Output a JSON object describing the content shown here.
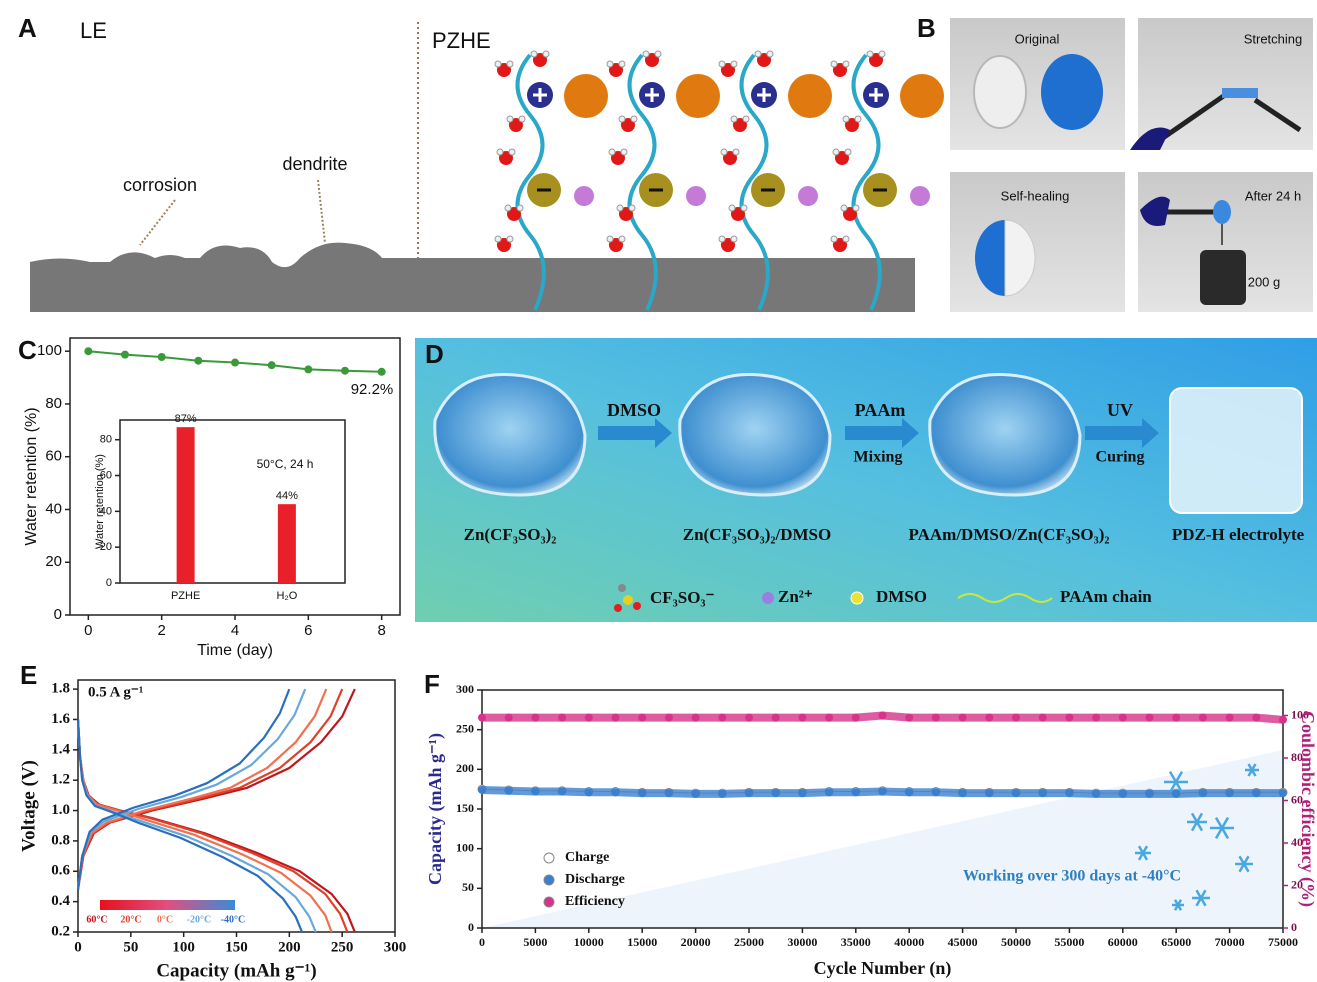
{
  "panel_labels": [
    "A",
    "B",
    "C",
    "D",
    "E",
    "F"
  ],
  "panel_a": {
    "le_label": "LE",
    "pzhe_label": "PZHE",
    "annotations": [
      "corrosion",
      "dendrite"
    ]
  },
  "panel_b": {
    "photos": [
      {
        "label": "Original"
      },
      {
        "label": "Stretching"
      },
      {
        "label": "Self-healing"
      },
      {
        "label": "After 24 h",
        "weight": "200 g"
      }
    ]
  },
  "panel_d": {
    "steps": [
      {
        "label": "DMSO"
      },
      {
        "label": "PAAm",
        "sublabel": "Mixing"
      },
      {
        "label": "UV",
        "sublabel": "Curing"
      }
    ],
    "materials": [
      "Zn(CF₃SO₃)₂",
      "Zn(CF₃SO₃)₂/DMSO",
      "PAAm/DMSO/Zn(CF₃SO₃)₂",
      "PDZ-H electrolyte"
    ],
    "legend": [
      "CF₃SO₃⁻",
      "Zn²⁺",
      "DMSO",
      "PAAm chain"
    ]
  },
  "chart_data": [
    {
      "type": "line",
      "x": [
        0,
        1,
        2,
        3,
        4,
        5,
        6,
        7,
        8
      ],
      "values": [
        100,
        98.7,
        97.8,
        96.4,
        95.7,
        94.7,
        93.1,
        92.6,
        92.2
      ],
      "color": "#3a9a3a",
      "xlim": [
        -0.5,
        8.5
      ],
      "ylim": [
        0,
        105
      ],
      "xticks": [
        0,
        2,
        4,
        6,
        8
      ],
      "yticks": [
        0,
        20,
        40,
        60,
        80,
        100
      ],
      "x_label": "Time (day)",
      "y_label": "Water retention (%)",
      "annotation": "92.2%"
    },
    {
      "type": "bar",
      "categories": [
        "PZHE",
        "H₂O"
      ],
      "values": [
        87,
        44
      ],
      "value_labels": [
        "87%",
        "44%"
      ],
      "color": "#e8202a",
      "ylim": [
        0,
        91
      ],
      "yticks": [
        0,
        20,
        40,
        60,
        80
      ],
      "y_label": "Water retention (%)",
      "annotation": "50°C, 24 h"
    },
    {
      "type": "line",
      "xlim": [
        0,
        300
      ],
      "ylim": [
        0.2,
        1.86
      ],
      "xticks": [
        0,
        50,
        100,
        150,
        200,
        250,
        300
      ],
      "yticks": [
        0.2,
        0.4,
        0.6,
        0.8,
        {
          "value": 1,
          "label": "1.0"
        },
        1.2,
        1.4,
        1.6,
        1.8
      ],
      "x_label": "Capacity (mAh g⁻¹)",
      "y_label": "Voltage (V)",
      "annotation": "0.5 A g⁻¹",
      "series": [
        {
          "name": "60°C",
          "color": "#c0161b",
          "discharge": {
            "x": [
              0,
              2,
              5,
              10,
              20,
              40,
              70,
              120,
              170,
              210,
              240,
              255,
              262
            ],
            "values": [
              1.6,
              1.35,
              1.2,
              1.1,
              1.04,
              1.0,
              0.95,
              0.85,
              0.72,
              0.6,
              0.45,
              0.32,
              0.2
            ]
          },
          "charge": {
            "x": [
              0,
              5,
              15,
              30,
              70,
              120,
              160,
              200,
              230,
              250,
              262
            ],
            "values": [
              0.48,
              0.7,
              0.85,
              0.92,
              1.0,
              1.08,
              1.15,
              1.28,
              1.45,
              1.62,
              1.8
            ]
          }
        },
        {
          "name": "20°C",
          "color": "#e0402a",
          "discharge": {
            "x": [
              0,
              2,
              5,
              10,
              19,
              39,
              68,
              117,
              165,
              204,
              234,
              248,
              255
            ],
            "values": [
              1.6,
              1.35,
              1.2,
              1.1,
              1.04,
              1.0,
              0.95,
              0.85,
              0.72,
              0.6,
              0.45,
              0.32,
              0.2
            ]
          },
          "charge": {
            "x": [
              0,
              5,
              14,
              29,
              67,
              115,
              153,
              191,
              220,
              239,
              250
            ],
            "values": [
              0.48,
              0.7,
              0.85,
              0.92,
              1.0,
              1.08,
              1.15,
              1.28,
              1.45,
              1.62,
              1.8
            ]
          }
        },
        {
          "name": "0°C",
          "color": "#f07050",
          "discharge": {
            "x": [
              0,
              2,
              5,
              9,
              18,
              37,
              64,
              110,
              156,
              192,
              220,
              234,
              240
            ],
            "values": [
              1.6,
              1.35,
              1.2,
              1.1,
              1.04,
              1.0,
              0.94,
              0.84,
              0.71,
              0.59,
              0.44,
              0.31,
              0.2
            ]
          },
          "charge": {
            "x": [
              0,
              4,
              13,
              27,
              63,
              108,
              144,
              179,
              206,
              224,
              235
            ],
            "values": [
              0.48,
              0.7,
              0.85,
              0.92,
              1.0,
              1.08,
              1.15,
              1.28,
              1.45,
              1.62,
              1.8
            ]
          }
        },
        {
          "name": "-20°C",
          "color": "#6aa8dc",
          "discharge": {
            "x": [
              0,
              2,
              4,
              9,
              17,
              34,
              60,
              103,
              146,
              180,
              206,
              219,
              225
            ],
            "values": [
              1.6,
              1.35,
              1.2,
              1.1,
              1.03,
              0.99,
              0.93,
              0.83,
              0.7,
              0.58,
              0.43,
              0.3,
              0.2
            ]
          },
          "charge": {
            "x": [
              0,
              4,
              12,
              25,
              57,
              98,
              131,
              164,
              189,
              205,
              215
            ],
            "values": [
              0.48,
              0.7,
              0.86,
              0.93,
              1.01,
              1.09,
              1.17,
              1.3,
              1.47,
              1.63,
              1.8
            ]
          }
        },
        {
          "name": "-40°C",
          "color": "#2a6fbf",
          "discharge": {
            "x": [
              0,
              2,
              4,
              8,
              16,
              32,
              57,
              97,
              138,
              170,
              194,
              206,
              212
            ],
            "values": [
              1.6,
              1.35,
              1.2,
              1.1,
              1.03,
              0.99,
              0.92,
              0.82,
              0.69,
              0.57,
              0.42,
              0.3,
              0.2
            ]
          },
          "charge": {
            "x": [
              0,
              4,
              11,
              23,
              53,
              92,
              122,
              153,
              176,
              191,
              200
            ],
            "values": [
              0.48,
              0.7,
              0.86,
              0.94,
              1.02,
              1.1,
              1.18,
              1.31,
              1.48,
              1.64,
              1.8
            ]
          }
        }
      ]
    },
    {
      "type": "scatter",
      "xlim": [
        0,
        75000
      ],
      "ylim": [
        0,
        300
      ],
      "y2lim": [
        0,
        112
      ],
      "xticks": [
        0,
        5000,
        10000,
        15000,
        20000,
        25000,
        30000,
        35000,
        40000,
        45000,
        50000,
        55000,
        60000,
        65000,
        70000,
        75000
      ],
      "yticks": [
        0,
        50,
        100,
        150,
        200,
        250,
        300
      ],
      "y2ticks": [
        0,
        20,
        40,
        60,
        80,
        100
      ],
      "x_label": "Cycle Number (n)",
      "y_label": "Capacity (mAh g⁻¹)",
      "y2_label": "Coulombic efficiency (%)",
      "annotation": "Working over 300 days at -40°C",
      "x": [
        0,
        2500,
        5000,
        7500,
        10000,
        12500,
        15000,
        17500,
        20000,
        22500,
        25000,
        27500,
        30000,
        32500,
        35000,
        37500,
        40000,
        42500,
        45000,
        47500,
        50000,
        52500,
        55000,
        57500,
        60000,
        62500,
        65000,
        67500,
        70000,
        72500,
        75000
      ],
      "series": [
        {
          "name": "Charge",
          "color": "#ffffff",
          "values": [
            175,
            174,
            173,
            173,
            172,
            172,
            171,
            171,
            170,
            170,
            171,
            171,
            171,
            172,
            172,
            173,
            172,
            172,
            171,
            171,
            171,
            171,
            171,
            170,
            170,
            170,
            170,
            171,
            171,
            171,
            171
          ]
        },
        {
          "name": "Discharge",
          "color": "#3b7fd0",
          "values": [
            174,
            173,
            172,
            172,
            171,
            171,
            170,
            170,
            169,
            169,
            170,
            170,
            170,
            171,
            171,
            172,
            171,
            171,
            170,
            170,
            170,
            170,
            170,
            169,
            169,
            169,
            169,
            170,
            170,
            170,
            170
          ]
        },
        {
          "name": "Efficiency",
          "color": "#d6338a",
          "axis": "y2",
          "values": [
            99,
            99,
            99,
            99,
            99,
            99,
            99,
            99,
            99,
            99,
            99,
            99,
            99,
            99,
            99,
            100,
            99,
            99,
            99,
            99,
            99,
            99,
            99,
            99,
            99,
            99,
            99,
            99,
            99,
            99,
            98
          ]
        }
      ]
    }
  ]
}
